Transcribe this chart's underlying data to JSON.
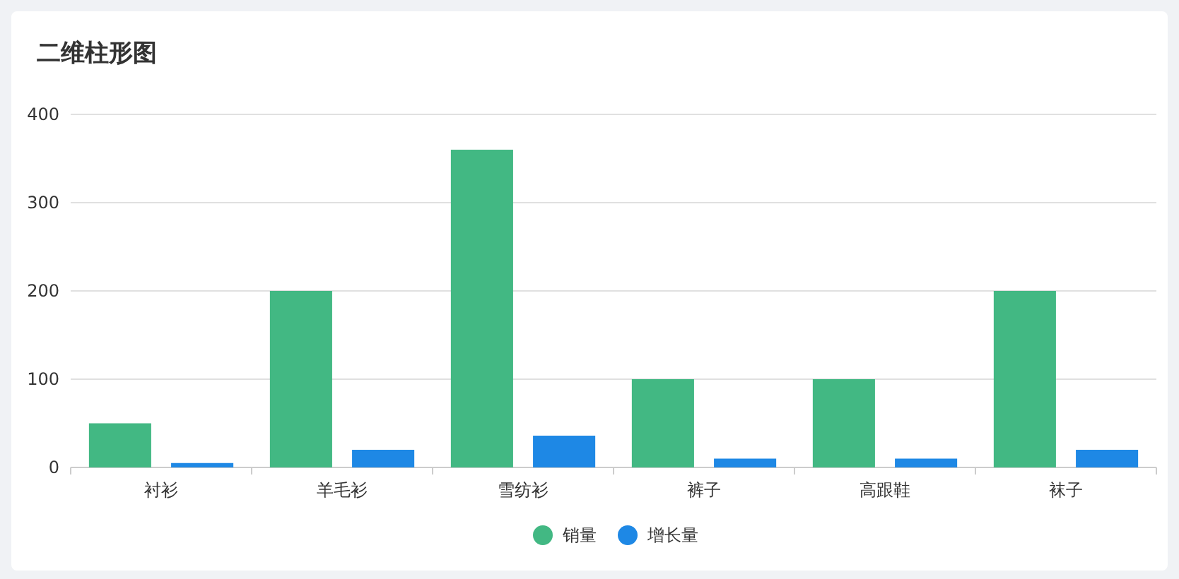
{
  "chart_data": {
    "type": "bar",
    "title": "二维柱形图",
    "categories": [
      "衬衫",
      "羊毛衫",
      "雪纺衫",
      "裤子",
      "高跟鞋",
      "袜子"
    ],
    "series": [
      {
        "name": "销量",
        "color": "#42b883",
        "values": [
          50,
          200,
          360,
          100,
          100,
          200
        ]
      },
      {
        "name": "增长量",
        "color": "#1e88e5",
        "values": [
          5,
          20,
          36,
          10,
          10,
          20
        ]
      }
    ],
    "ylim": [
      0,
      400
    ],
    "yticks": [
      0,
      100,
      200,
      300,
      400
    ],
    "grid": "y",
    "legend": "bottom"
  }
}
